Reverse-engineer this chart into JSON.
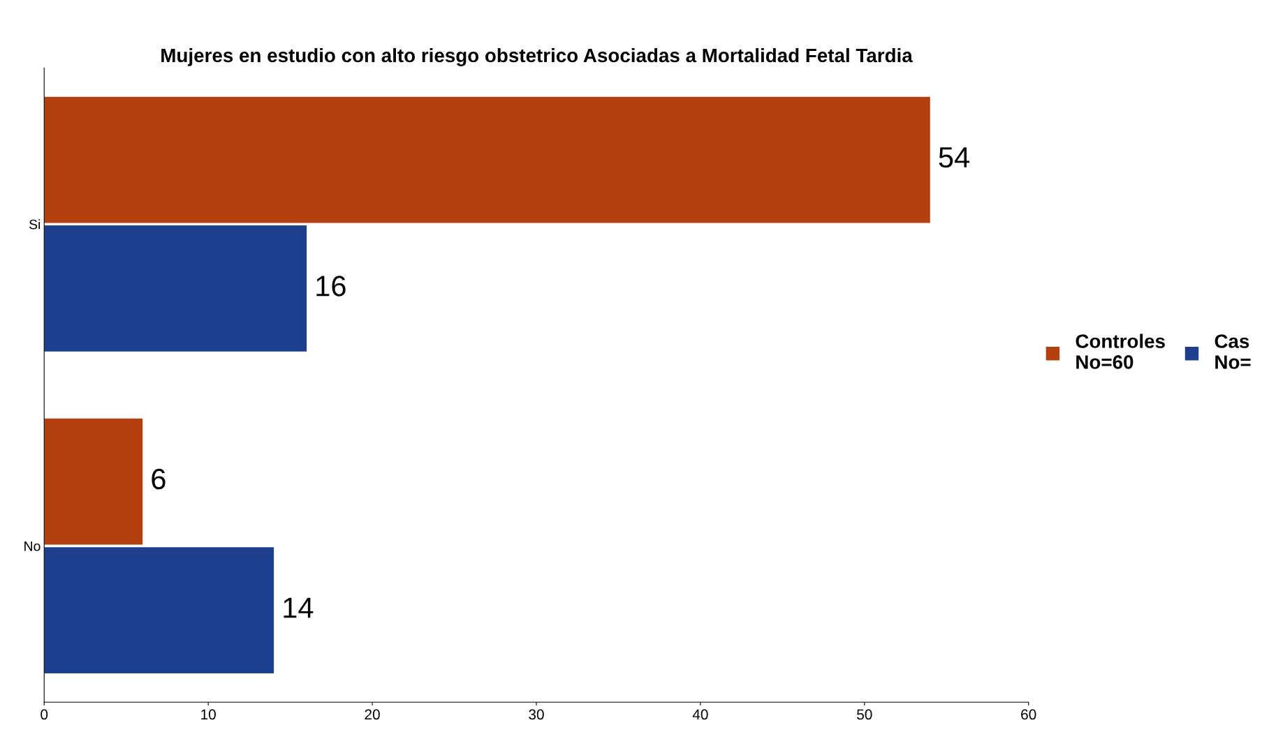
{
  "chart_data": {
    "type": "bar",
    "orientation": "horizontal",
    "title": "Mujeres en estudio con alto riesgo obstetrico Asociadas a Mortalidad Fetal Tardia",
    "categories": [
      "Si",
      "No"
    ],
    "series": [
      {
        "name": "Controles\nNo=60",
        "color": "#b5400f",
        "values": [
          54,
          6
        ]
      },
      {
        "name": "Cas\nNo=",
        "color": "#1d3f8e",
        "values": [
          16,
          14
        ]
      }
    ],
    "xlim": [
      0,
      60
    ],
    "xticks": [
      0,
      10,
      20,
      30,
      40,
      50,
      60
    ],
    "data_labels": true,
    "grid": false,
    "legend": "right"
  }
}
